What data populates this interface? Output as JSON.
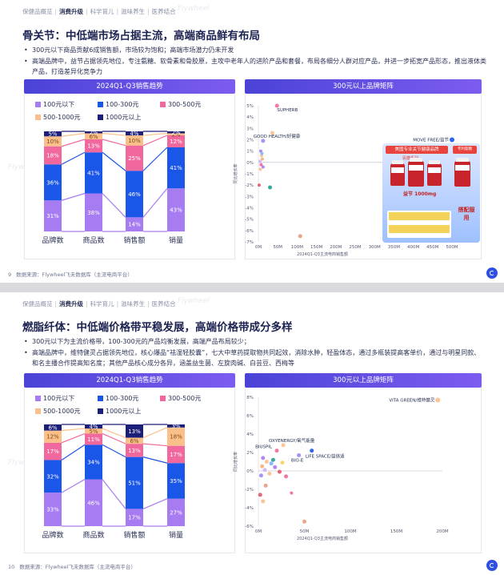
{
  "slides": [
    {
      "breadcrumb": [
        "保健品概览",
        "消费升级",
        "科学育儿",
        "滋味养生",
        "医养结合"
      ],
      "breadcrumb_active": 1,
      "title": "骨关节：中低端市场占据主流，高端商品鲜有布局",
      "bullets": [
        "300元以下商品贡献6成销售额，市场较为饱和；高端市场潜力仍未开发",
        "高端品牌中，益节占据领先地位，专注氨糖、软骨素和骨胶原，主攻中老年人的进阶产品和套餐，布局各细分人群对应产品，并进一步拓宽产品形态，推出液体类产品，打造差异化竞争力"
      ],
      "left_panel_title": "2024Q1-Q3销售趋势",
      "right_panel_title": "300元以上品牌矩阵",
      "footer_page": "9",
      "footer_text": "数据来源：Flywheel飞未数据库（主流电商平台）",
      "watermark": "Flywheel",
      "legend": [
        "100元以下",
        "100-300元",
        "300-500元",
        "500-1000元",
        "1000元以上"
      ],
      "product_image": {
        "header": "美国专业关节健康品牌",
        "header_right": "专利氨糖",
        "sub": "氨糖系列",
        "mid": "益节 1000mg",
        "side": "搭配服用"
      },
      "bar_chart": {
        "type": "bar",
        "stacked": true,
        "percent": true,
        "categories": [
          "品牌数",
          "商品数",
          "销售额",
          "销量"
        ],
        "series": [
          {
            "name": "100元以下",
            "color": "#a77cf2",
            "values": [
              31,
              38,
              14,
              43
            ]
          },
          {
            "name": "100-300元",
            "color": "#1a56e8",
            "values": [
              36,
              41,
              46,
              41
            ]
          },
          {
            "name": "300-500元",
            "color": "#f0689e",
            "values": [
              18,
              13,
              25,
              12
            ]
          },
          {
            "name": "500-1000元",
            "color": "#fbc089",
            "values": [
              10,
              6,
              10,
              2
            ]
          },
          {
            "name": "1000元以上",
            "color": "#1c1f7a",
            "values": [
              5,
              2,
              4,
              2
            ]
          }
        ],
        "labels": [
          [
            "31%",
            "36%",
            "18%",
            "10%",
            "5%"
          ],
          [
            "38%",
            "41%",
            "13%",
            "6%",
            "2%"
          ],
          [
            "14%",
            "46%",
            "25%",
            "10%",
            "4%"
          ],
          [
            "43%",
            "41%",
            "12%",
            "2%",
            "2%"
          ]
        ]
      },
      "scatter": {
        "type": "scatter",
        "xlabel": "2024Q1-Q3主流电商销售额",
        "ylabel": "同比增长率",
        "x_ticks": [
          "0M",
          "50M",
          "100M",
          "150M",
          "200M",
          "250M",
          "300M",
          "350M",
          "400M",
          "450M",
          "500M"
        ],
        "xlim": [
          0,
          500
        ],
        "y_ticks": [
          "5%",
          "4%",
          "3%",
          "2%",
          "1%",
          "0%",
          "-1%",
          "-2%",
          "-3%",
          "-4%",
          "-5%",
          "-6%",
          "-7%"
        ],
        "ylim": [
          -7,
          5
        ],
        "points": [
          {
            "x": 48,
            "y": 5.0,
            "label": "SUPHERB",
            "color": "#f0689e",
            "r": 2.5
          },
          {
            "x": 36,
            "y": 2.6,
            "label": "",
            "color": "#fbc089",
            "r": 2.5
          },
          {
            "x": 12,
            "y": 1.9,
            "label": "GOOD HEALTH/好健康",
            "color": "#9b87f5",
            "r": 2.5
          },
          {
            "x": 500,
            "y": 2.0,
            "label": "MOVE FREE/益节",
            "color": "#1a56e8",
            "r": 3
          },
          {
            "x": 6,
            "y": 1.0,
            "label": "",
            "color": "#a77cf2",
            "r": 2
          },
          {
            "x": 8,
            "y": 0.6,
            "label": "",
            "color": "#fbc089",
            "r": 2
          },
          {
            "x": 10,
            "y": 0.3,
            "label": "",
            "color": "#f5b07a",
            "r": 2
          },
          {
            "x": 4,
            "y": 0.1,
            "label": "",
            "color": "#c9b2f7",
            "r": 2
          },
          {
            "x": 7,
            "y": -0.2,
            "label": "",
            "color": "#f0689e",
            "r": 2
          },
          {
            "x": 12,
            "y": -0.4,
            "label": "",
            "color": "#a77cf2",
            "r": 2
          },
          {
            "x": 5,
            "y": -0.6,
            "label": "",
            "color": "#fbc089",
            "r": 2
          },
          {
            "x": 9,
            "y": 0.8,
            "label": "",
            "color": "#7fb0ff",
            "r": 2
          },
          {
            "x": 2,
            "y": -2.0,
            "label": "",
            "color": "#e2556b",
            "r": 2
          },
          {
            "x": 30,
            "y": -2.2,
            "label": "",
            "color": "#1fa38a",
            "r": 2.5
          },
          {
            "x": 108,
            "y": -6.5,
            "label": "",
            "color": "#e89a7a",
            "r": 2.5
          }
        ]
      }
    },
    {
      "breadcrumb": [
        "保健品概览",
        "消费升级",
        "科学育儿",
        "滋味养生",
        "医养结合"
      ],
      "breadcrumb_active": 1,
      "title": "燃脂纤体：中低端价格带平稳发展，高端价格带成分多样",
      "bullets": [
        "300元以下为主流价格带，100-300元的产品均衡发展，高端产品布局较少；",
        "高端品牌中，维特健灵占据领先地位，核心爆品“祛湿轻胶囊”，七大中草药提取物共同起效，消除水肿，轻盈体态，通过多瓶装提高客单价，通过与明星同款、和名主播合作提高知名度；其他产品核心成分各异，涵盖益生菌、左旋肉碱、白芸豆、西梅等"
      ],
      "left_panel_title": "2024Q1-Q3销售趋势",
      "right_panel_title": "300元以上品牌矩阵",
      "footer_page": "10",
      "footer_text": "数据来源：Flywheel飞未数据库（主流电商平台）",
      "watermark": "Flywheel",
      "legend": [
        "100元以下",
        "100-300元",
        "300-500元",
        "500-1000元",
        "1000元以上"
      ],
      "bar_chart": {
        "type": "bar",
        "stacked": true,
        "percent": true,
        "categories": [
          "品牌数",
          "商品数",
          "销售额",
          "销量"
        ],
        "series": [
          {
            "name": "100元以下",
            "color": "#a77cf2",
            "values": [
              33,
              46,
              17,
              27
            ]
          },
          {
            "name": "100-300元",
            "color": "#1a56e8",
            "values": [
              32,
              34,
              51,
              35
            ]
          },
          {
            "name": "300-500元",
            "color": "#f0689e",
            "values": [
              17,
              11,
              13,
              17
            ]
          },
          {
            "name": "500-1000元",
            "color": "#fbc089",
            "values": [
              12,
              5,
              6,
              18
            ]
          },
          {
            "name": "1000元以上",
            "color": "#1c1f7a",
            "values": [
              6,
              4,
              13,
              3
            ]
          }
        ],
        "labels": [
          [
            "33%",
            "32%",
            "17%",
            "12%",
            "6%"
          ],
          [
            "46%",
            "34%",
            "11%",
            "5%",
            "4%"
          ],
          [
            "17%",
            "51%",
            "13%",
            "6%",
            "13%"
          ],
          [
            "27%",
            "35%",
            "17%",
            "18%",
            "3%"
          ]
        ]
      },
      "scatter": {
        "type": "scatter",
        "xlabel": "2024Q1-Q3主流电商销售额",
        "ylabel": "同比增长率",
        "x_ticks": [
          "0M",
          "50M",
          "100M",
          "150M",
          "200M"
        ],
        "xlim": [
          0,
          200
        ],
        "y_ticks": [
          "8%",
          "6%",
          "4%",
          "2%",
          "0%",
          "-2%",
          "-4%",
          "-6%"
        ],
        "ylim": [
          -6,
          8
        ],
        "points": [
          {
            "x": 195,
            "y": 7.7,
            "label": "VITA GREEN/维特健灵",
            "color": "#fbc089",
            "r": 3
          },
          {
            "x": 27,
            "y": 2.8,
            "label": "OXYENERGY/氧气能量",
            "color": "#fbc089",
            "r": 2.5
          },
          {
            "x": 20,
            "y": 2.2,
            "label": "BIUSPIL",
            "color": "#f0689e",
            "r": 2.5
          },
          {
            "x": 44,
            "y": 1.7,
            "label": "BIO-E",
            "color": "#9b87f5",
            "r": 2.5
          },
          {
            "x": 58,
            "y": 2.2,
            "label": "LIFE SPACE/益倍适",
            "color": "#1a56e8",
            "r": 2.5
          },
          {
            "x": 5,
            "y": 1.4,
            "label": "",
            "color": "#a77cf2",
            "r": 2.5
          },
          {
            "x": 9,
            "y": 1.0,
            "label": "",
            "color": "#fbc089",
            "r": 2.5
          },
          {
            "x": 14,
            "y": 0.8,
            "label": "",
            "color": "#7fb0ff",
            "r": 2.5
          },
          {
            "x": 4,
            "y": 0.5,
            "label": "",
            "color": "#f5b07a",
            "r": 2.5
          },
          {
            "x": 18,
            "y": 0.4,
            "label": "",
            "color": "#a77cf2",
            "r": 2.5
          },
          {
            "x": 7,
            "y": 0.1,
            "label": "",
            "color": "#c9b2f7",
            "r": 2.5
          },
          {
            "x": 23,
            "y": -0.1,
            "label": "",
            "color": "#e2556b",
            "r": 2.5
          },
          {
            "x": 12,
            "y": -0.3,
            "label": "",
            "color": "#fbc089",
            "r": 2.5
          },
          {
            "x": 3,
            "y": -0.5,
            "label": "",
            "color": "#9b87f5",
            "r": 2.5
          },
          {
            "x": 30,
            "y": -0.6,
            "label": "",
            "color": "#f0689e",
            "r": 2.5
          },
          {
            "x": 16,
            "y": 1.2,
            "label": "",
            "color": "#1fa38a",
            "r": 2.5
          },
          {
            "x": 26,
            "y": 0.9,
            "label": "",
            "color": "#f5d35a",
            "r": 2.5
          },
          {
            "x": 8,
            "y": -1.6,
            "label": "",
            "color": "#e89a7a",
            "r": 2.5
          },
          {
            "x": 2,
            "y": -2.6,
            "label": "",
            "color": "#e2556b",
            "r": 2.5
          },
          {
            "x": 5,
            "y": -3.3,
            "label": "",
            "color": "#fbc089",
            "r": 2.5
          },
          {
            "x": 36,
            "y": -2.4,
            "label": "",
            "color": "#f0689e",
            "r": 2
          },
          {
            "x": 50,
            "y": -5.5,
            "label": "",
            "color": "#e89a7a",
            "r": 2.5
          }
        ]
      }
    }
  ]
}
